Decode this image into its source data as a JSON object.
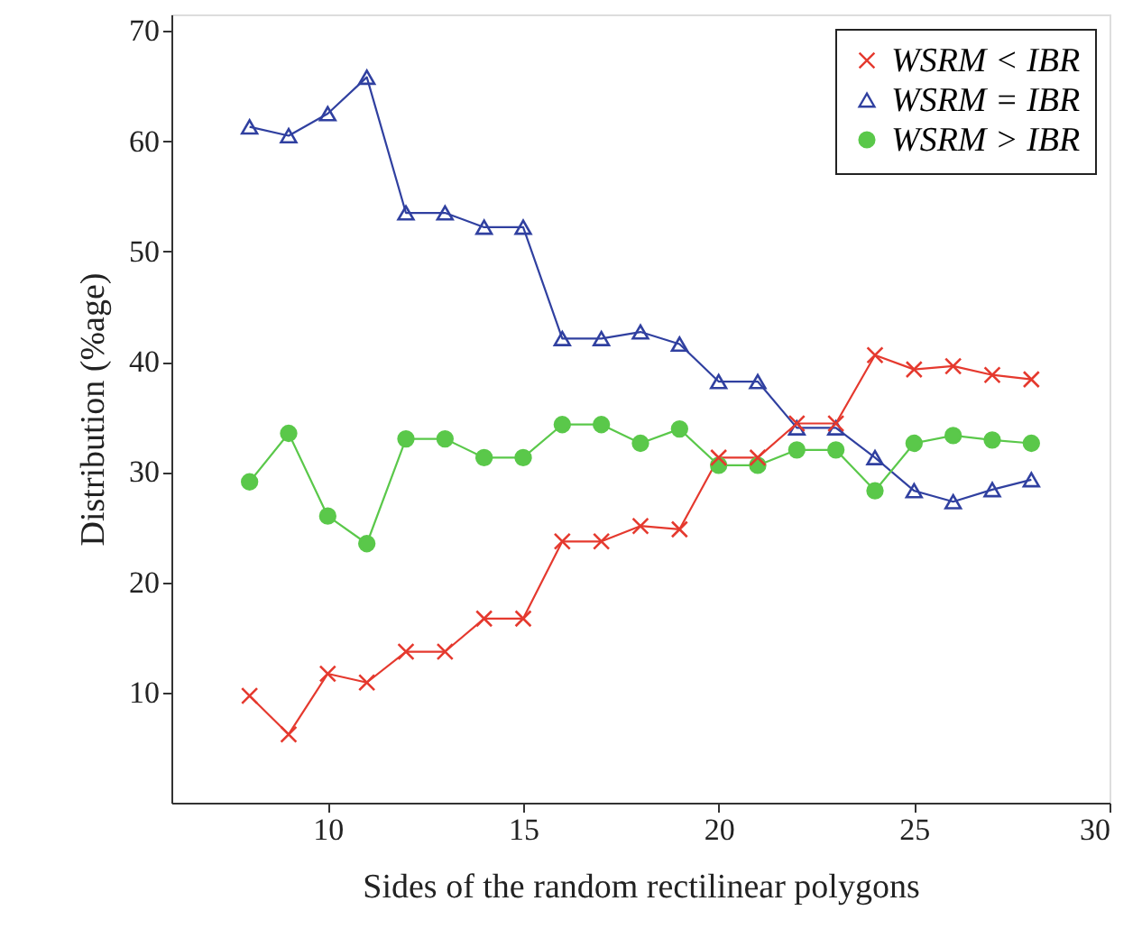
{
  "chart_data": {
    "type": "line",
    "xlabel": "Sides of the random rectilinear polygons",
    "ylabel": "Distribution (%age)",
    "x": [
      8,
      9,
      10,
      11,
      12,
      13,
      14,
      15,
      16,
      17,
      18,
      19,
      20,
      21,
      22,
      23,
      24,
      25,
      26,
      27,
      28
    ],
    "series": [
      {
        "name": "WSRM < IBR",
        "color": "#e5392e",
        "marker": "cross",
        "values": [
          9.7,
          6.2,
          11.7,
          10.9,
          13.7,
          13.7,
          16.7,
          16.7,
          23.7,
          23.7,
          25.1,
          24.8,
          31.3,
          31.3,
          34.4,
          34.4,
          40.6,
          39.3,
          39.6,
          38.8,
          38.4
        ]
      },
      {
        "name": "WSRM = IBR",
        "color": "#3040a0",
        "marker": "triangle",
        "values": [
          61.3,
          60.5,
          62.5,
          65.8,
          53.5,
          53.5,
          52.2,
          52.2,
          42.1,
          42.1,
          42.7,
          41.6,
          38.2,
          38.2,
          34.0,
          34.0,
          31.3,
          28.3,
          27.3,
          28.4,
          29.3
        ]
      },
      {
        "name": "WSRM > IBR",
        "color": "#5ac84a",
        "marker": "circle",
        "values": [
          29.1,
          33.5,
          26.0,
          23.5,
          33.0,
          33.0,
          31.3,
          31.3,
          34.3,
          34.3,
          32.6,
          33.9,
          30.6,
          30.6,
          32.0,
          32.0,
          28.3,
          32.6,
          33.3,
          32.9,
          32.6
        ]
      }
    ],
    "xlim": [
      6,
      30
    ],
    "ylim": [
      0,
      71.5
    ],
    "xticks": [
      10,
      15,
      20,
      25,
      30
    ],
    "yticks": [
      10,
      20,
      30,
      40,
      50,
      60,
      70
    ],
    "grid": false,
    "legend": "top right",
    "line_style": "solid"
  }
}
